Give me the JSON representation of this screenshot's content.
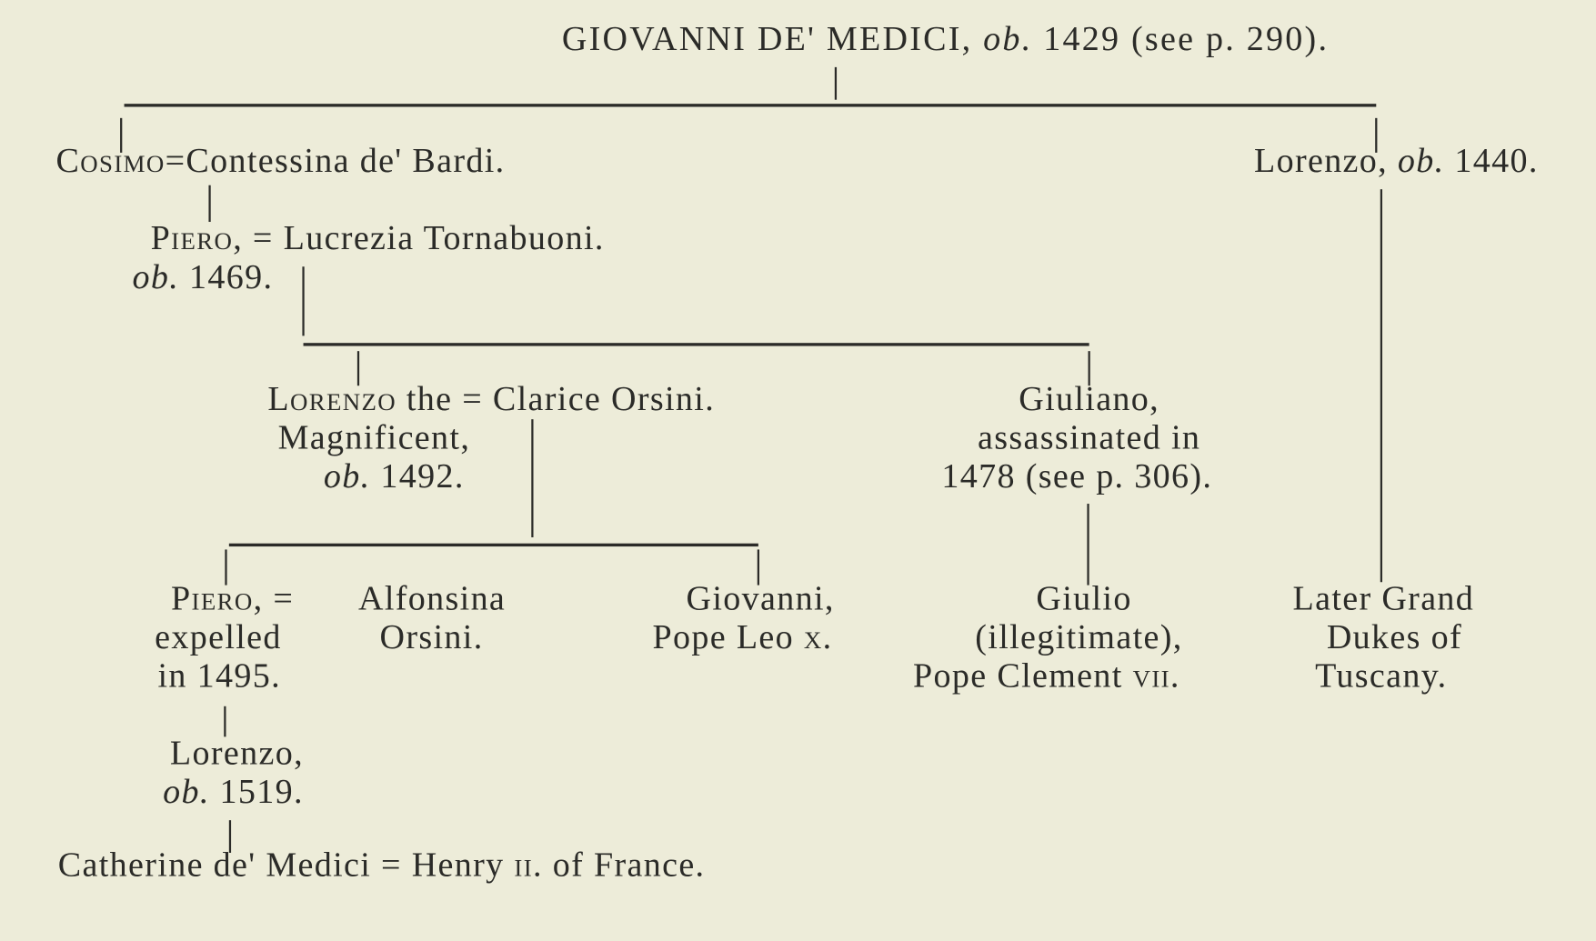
{
  "title": {
    "name": "GIOVANNI DE' MEDICI,",
    "ob": "ob.",
    "rest": "1429 (see p. 290)."
  },
  "cosimo": {
    "name": "Cosimo",
    "eq": "=",
    "spouse": "Contessina de' Bardi."
  },
  "lorenzo_1440": {
    "name": "Lorenzo,",
    "ob": "ob.",
    "year": "1440."
  },
  "piero_1469": {
    "name": "Piero,",
    "eq": "=",
    "spouse": "Lucrezia Tornabuoni.",
    "ob": "ob.",
    "year": "1469."
  },
  "lorenzo_magnificent": {
    "name": "Lorenzo",
    "the": "the",
    "eq": "=",
    "spouse": "Clarice Orsini.",
    "line2": "Magnificent,",
    "ob": "ob.",
    "year": "1492."
  },
  "giuliano": {
    "line1": "Giuliano,",
    "line2": "assassinated in",
    "line3": "1478 (see p. 306)."
  },
  "piero_1495": {
    "name": "Piero,",
    "eq": "=",
    "line2": "expelled",
    "line3": "in 1495.",
    "spouse1": "Alfonsina",
    "spouse2": "Orsini."
  },
  "giovanni_leo": {
    "line1": "Giovanni,",
    "line2": "Pope Leo",
    "numeral": "x."
  },
  "giulio": {
    "line1": "Giulio",
    "line2": "(illegitimate),",
    "line3": "Pope Clement",
    "numeral": "vii."
  },
  "grand_dukes": {
    "line1": "Later Grand",
    "line2": "Dukes of",
    "line3": "Tuscany."
  },
  "lorenzo_1519": {
    "name": "Lorenzo,",
    "ob": "ob.",
    "year": "1519."
  },
  "catherine": {
    "name": "Catherine de' Medici",
    "eq": "=",
    "spouse": "Henry",
    "numeral": "ii.",
    "rest": "of France."
  }
}
